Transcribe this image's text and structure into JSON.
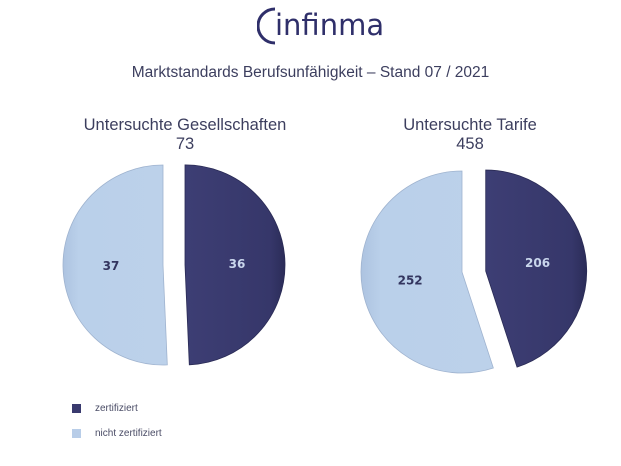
{
  "logo": {
    "text": "infinma"
  },
  "title": "Marktstandards Berufsunfähigkeit – Stand 07 / 2021",
  "colors": {
    "zertifiziert": "#393a6e",
    "nicht_zertifiziert": "#b8cde8",
    "text": "#3c3e5e"
  },
  "legend": [
    {
      "label": "zertifiziert",
      "color": "#393a6e"
    },
    {
      "label": "nicht zertifiziert",
      "color": "#b8cde8"
    }
  ],
  "chart_data": [
    {
      "type": "pie",
      "title": "Untersuchte Gesellschaften",
      "total": "73",
      "slices": [
        {
          "name": "zertifiziert",
          "value": 36,
          "label": "36"
        },
        {
          "name": "nicht zertifiziert",
          "value": 37,
          "label": "37"
        }
      ]
    },
    {
      "type": "pie",
      "title": "Untersuchte Tarife",
      "total": "458",
      "slices": [
        {
          "name": "zertifiziert",
          "value": 206,
          "label": "206"
        },
        {
          "name": "nicht zertifiziert",
          "value": 252,
          "label": "252"
        }
      ]
    }
  ]
}
